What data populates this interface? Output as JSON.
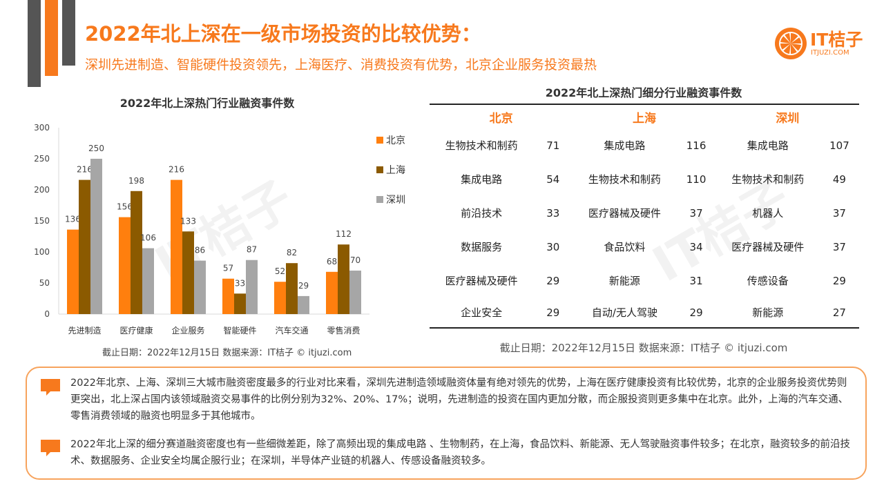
{
  "header": {
    "title": "2022年北上深在一级市场投资的比较优势：",
    "subtitle": "深圳先进制造、智能硬件投资领先，上海医疗、消费投资有优势，北京企业服务投资最热"
  },
  "logo": {
    "text": "IT桔子",
    "url": "ITJUZI.COM"
  },
  "colors": {
    "accent": "#f7791d",
    "beijing": "#ff7f0e",
    "shanghai": "#8b5a00",
    "shenzhen": "#a6a6a6"
  },
  "chart_data": {
    "type": "bar",
    "title": "2022年北上深热门行业融资事件数",
    "categories": [
      "先进制造",
      "医疗健康",
      "企业服务",
      "智能硬件",
      "汽车交通",
      "零售消费"
    ],
    "series": [
      {
        "name": "北京",
        "values": [
          136,
          156,
          216,
          57,
          52,
          68
        ],
        "color": "#ff7f0e"
      },
      {
        "name": "上海",
        "values": [
          216,
          198,
          133,
          33,
          82,
          112
        ],
        "color": "#8b5a00"
      },
      {
        "name": "深圳",
        "values": [
          250,
          106,
          86,
          87,
          29,
          70
        ],
        "color": "#a6a6a6"
      }
    ],
    "ylim": [
      0,
      300
    ],
    "yticks": [
      "0",
      "50",
      "100",
      "150",
      "200",
      "250",
      "300"
    ],
    "legend_position": "right",
    "grid": false
  },
  "chart_footnote": "截止日期：2022年12月15日    数据来源：IT桔子 © itjuzi.com",
  "table": {
    "title": "2022年北上深热门细分行业融资事件数",
    "headers": [
      "北京",
      "上海",
      "深圳"
    ],
    "rows": [
      [
        "生物技术和制药",
        "71",
        "集成电路",
        "116",
        "集成电路",
        "107"
      ],
      [
        "集成电路",
        "54",
        "生物技术和制药",
        "110",
        "生物技术和制药",
        "49"
      ],
      [
        "前沿技术",
        "33",
        "医疗器械及硬件",
        "37",
        "机器人",
        "37"
      ],
      [
        "数据服务",
        "30",
        "食品饮料",
        "34",
        "医疗器械及硬件",
        "37"
      ],
      [
        "医疗器械及硬件",
        "29",
        "新能源",
        "31",
        "传感设备",
        "29"
      ],
      [
        "企业安全",
        "29",
        "自动/无人驾驶",
        "29",
        "新能源",
        "27"
      ]
    ],
    "footnote": "截止日期：2022年12月15日    数据来源：IT桔子 © itjuzi.com"
  },
  "summary": {
    "p1": "2022年北京、上海、深圳三大城市融资密度最多的行业对比来看，深圳先进制造领域融资体量有绝对领先的优势，上海在医疗健康投资有比较优势，北京的企业服务投资优势则更突出，北上深占国内该领域融资交易事件的比例分别为32%、20%、17%；说明，先进制造的投资在国内更加分散，而企服投资则更多集中在北京。此外，上海的汽车交通、零售消费领域的融资也明显多于其他城市。",
    "p2": "2022年北上深的细分赛道融资密度也有一些细微差距，除了高频出现的集成电路 、生物制药，在上海，食品饮料、新能源、无人驾驶融资事件较多；在北京，融资较多的前沿技术、数据服务、企业安全均属企服行业；在深圳，半导体产业链的机器人、传感设备融资较多。"
  }
}
